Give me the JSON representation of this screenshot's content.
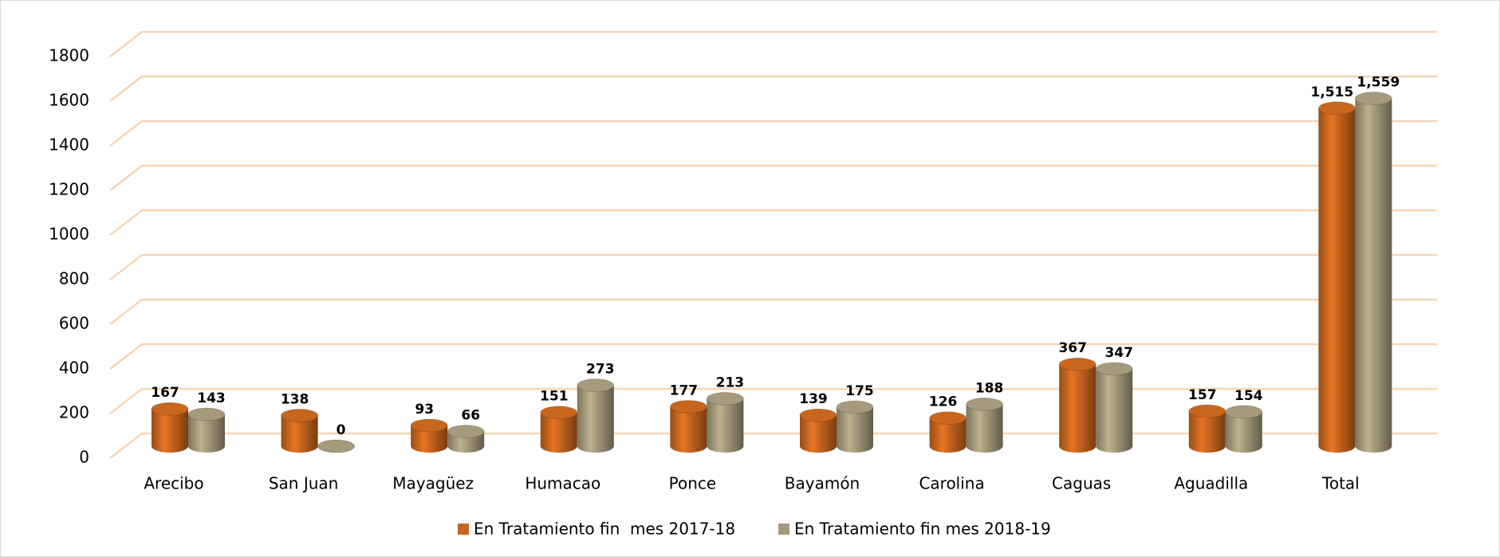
{
  "chart_data": {
    "type": "bar3d",
    "categories": [
      "Arecibo",
      "San Juan",
      "Mayagüez",
      "Humacao",
      "Ponce",
      "Bayamón",
      "Carolina",
      "Caguas",
      "Aguadilla",
      "Total"
    ],
    "series": [
      {
        "name": "En Tratamiento fin  mes 2017-18",
        "color": "#c8661e",
        "values": [
          167,
          138,
          93,
          151,
          177,
          139,
          126,
          367,
          157,
          1515
        ],
        "value_labels": [
          "167",
          "138",
          "93",
          "151",
          "177",
          "139",
          "126",
          "367",
          "157",
          "1,515"
        ]
      },
      {
        "name": "En Tratamiento fin mes 2018-19",
        "color": "#a59a7c",
        "values": [
          143,
          0,
          66,
          273,
          213,
          175,
          188,
          347,
          154,
          1559
        ],
        "value_labels": [
          "143",
          "0",
          "66",
          "273",
          "213",
          "175",
          "188",
          "347",
          "154",
          "1,559"
        ]
      }
    ],
    "ylim": [
      0,
      1800
    ],
    "yticks": [
      0,
      200,
      400,
      600,
      800,
      1000,
      1200,
      1400,
      1600,
      1800
    ],
    "grid": true,
    "grid_color": "#f6d6b6",
    "legend": "bottom"
  }
}
